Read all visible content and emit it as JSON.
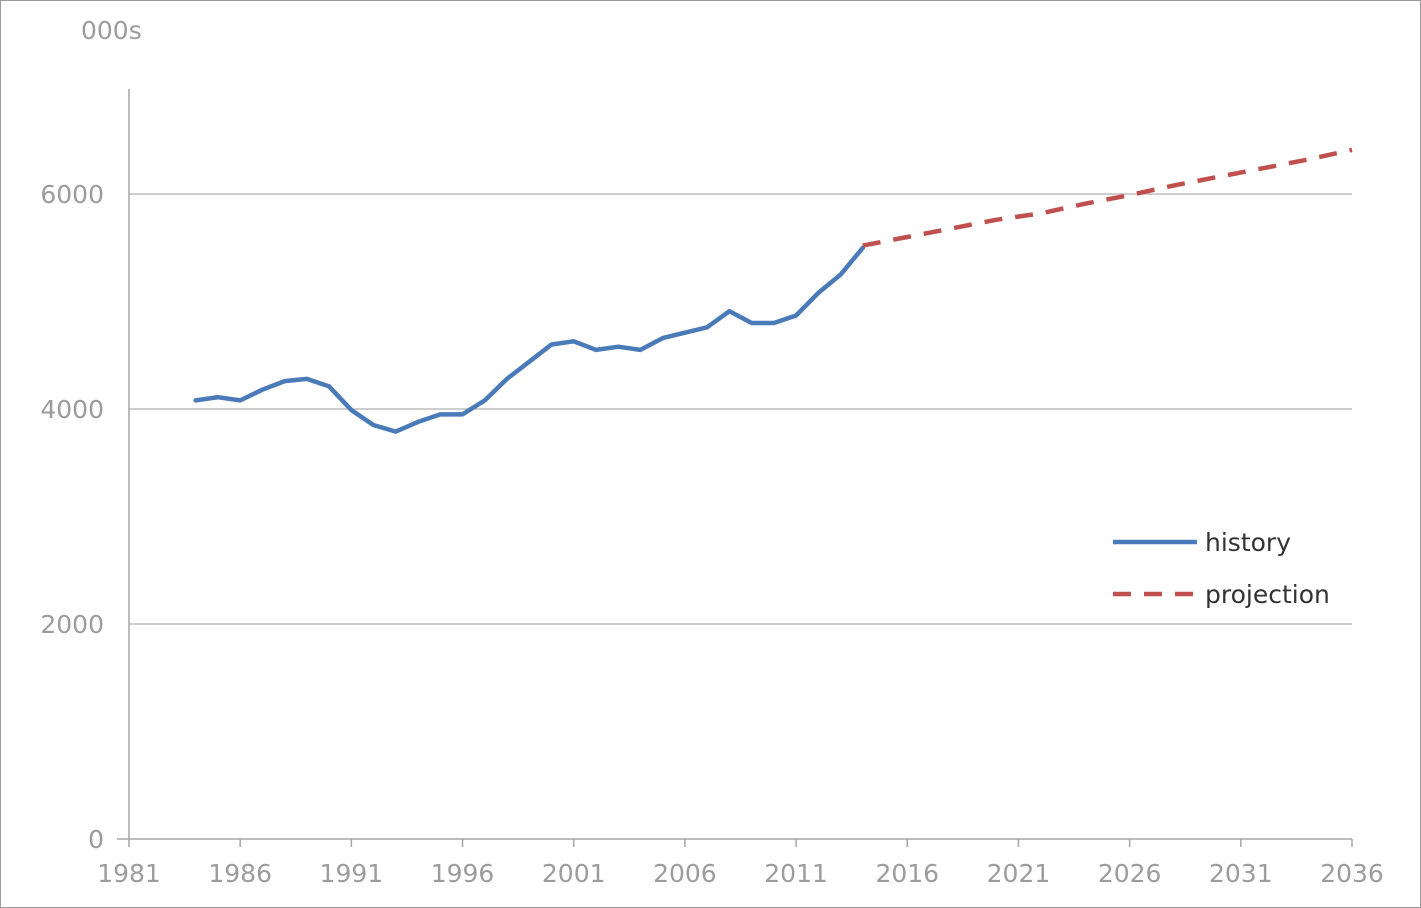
{
  "chart_data": {
    "type": "line",
    "title": "",
    "xlabel": "",
    "ylabel": "000s",
    "xlim": [
      1981,
      2036
    ],
    "ylim": [
      0,
      7000
    ],
    "x_ticks": [
      1981,
      1986,
      1991,
      1996,
      2001,
      2006,
      2011,
      2016,
      2021,
      2026,
      2031,
      2036
    ],
    "y_ticks": [
      0,
      2000,
      4000,
      6000
    ],
    "grid": "horizontal",
    "legend_position": "right",
    "series": [
      {
        "name": "history",
        "style": "solid",
        "color": "#4a7ab8",
        "x": [
          1984,
          1985,
          1986,
          1987,
          1988,
          1989,
          1990,
          1991,
          1992,
          1993,
          1994,
          1995,
          1996,
          1997,
          1998,
          1999,
          2000,
          2001,
          2002,
          2003,
          2004,
          2005,
          2006,
          2007,
          2008,
          2009,
          2010,
          2011,
          2012,
          2013,
          2014
        ],
        "values": [
          4080,
          4110,
          4080,
          4180,
          4260,
          4280,
          4210,
          3990,
          3850,
          3790,
          3880,
          3950,
          3950,
          4080,
          4280,
          4440,
          4600,
          4630,
          4550,
          4580,
          4550,
          4660,
          4710,
          4760,
          4910,
          4800,
          4800,
          4870,
          5080,
          5250,
          5500
        ]
      },
      {
        "name": "projection",
        "style": "dashed",
        "color": "#c0504d",
        "x": [
          2014,
          2016,
          2018,
          2020,
          2022,
          2024,
          2026,
          2028,
          2030,
          2032,
          2034,
          2036
        ],
        "values": [
          5520,
          5600,
          5680,
          5760,
          5820,
          5910,
          5990,
          6080,
          6160,
          6240,
          6320,
          6410
        ]
      }
    ]
  }
}
